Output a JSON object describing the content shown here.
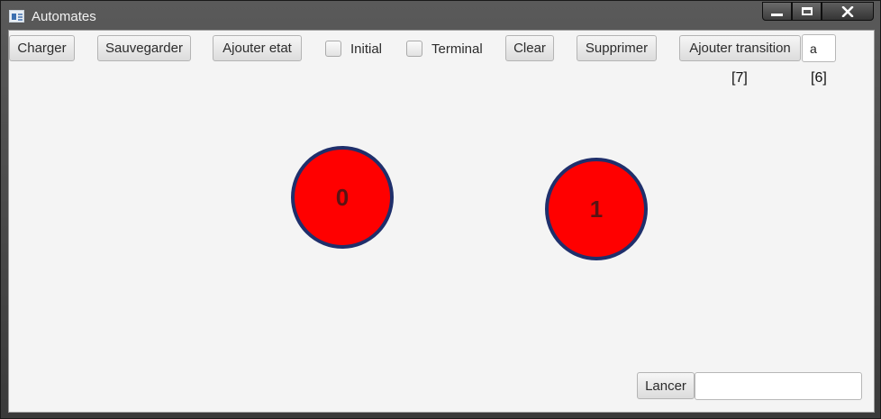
{
  "window": {
    "title": "Automates"
  },
  "toolbar": {
    "charger": "Charger",
    "sauvegarder": "Sauvegarder",
    "ajouter_etat": "Ajouter etat",
    "initial_label": "Initial",
    "terminal_label": "Terminal",
    "clear": "Clear",
    "supprimer": "Supprimer",
    "ajouter_transition": "Ajouter transition",
    "transition_symbol_value": "a",
    "transition_index": "[7]",
    "symbol_index": "[6]"
  },
  "states": [
    {
      "label": "0"
    },
    {
      "label": "1"
    }
  ],
  "run": {
    "lancer": "Lancer",
    "word_input_value": ""
  },
  "colors": {
    "state_fill": "#ff0000",
    "state_border": "#1f2f6b",
    "canvas_bg": "#f4f4f4"
  }
}
